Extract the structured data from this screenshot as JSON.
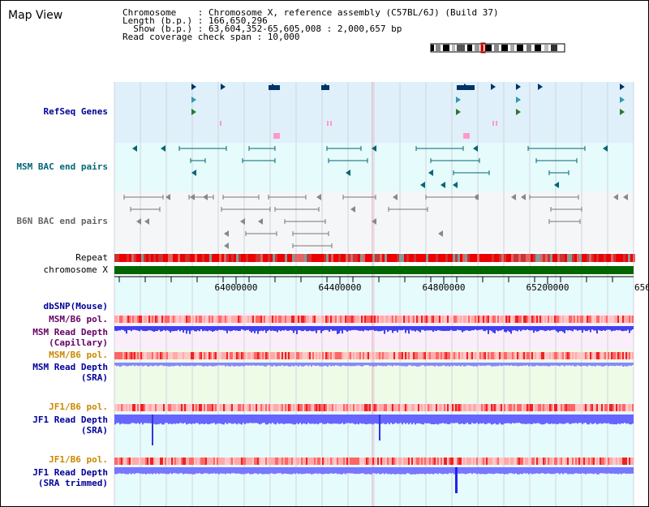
{
  "title": "Map View",
  "info": {
    "line1": "Chromosome    : Chromosome X, reference assembly (C57BL/6J) (Build 37)",
    "line2": "Length (b.p.) : 166,650,296",
    "line3": "Show (b.p.) : 63,604,352-65,605,008 : 2,000,657 bp",
    "line4": "Read coverage check span : 10,000"
  },
  "tracks": {
    "refseq": "RefSeq Genes",
    "msm_bac": "MSM BAC end pairs",
    "b6n_bac": "B6N BAC end pairs",
    "repeat": "Repeat",
    "chromosome": "chromosome X",
    "dbsnp": "dbSNP(Mouse)",
    "msm_b6_pol_1": "MSM/B6 pol.",
    "msm_depth_cap_1": "MSM Read Depth",
    "msm_depth_cap_2": "(Capillary)",
    "msm_b6_pol_2": "MSM/B6 pol.",
    "msm_depth_sra_1": "MSM Read Depth",
    "msm_depth_sra_2": "(SRA)",
    "jf1_b6_pol_1": "JF1/B6 pol.",
    "jf1_depth_sra_1": "JF1 Read Depth",
    "jf1_depth_sra_2": "(SRA)",
    "jf1_b6_pol_2": "JF1/B6 pol.",
    "jf1_depth_trim_1": "JF1 Read Depth",
    "jf1_depth_trim_2": "(SRA trimmed)"
  },
  "axis": {
    "ticks": [
      "64000000",
      "64400000",
      "64800000",
      "65200000",
      "656"
    ]
  },
  "colors": {
    "navy": "#000099",
    "teal": "#006677",
    "gray": "#666666",
    "orange": "#cc8800",
    "purple": "#660066",
    "chromosome": "#006600",
    "depth": "#5555ff",
    "polymorphism": "#ff8888"
  }
}
